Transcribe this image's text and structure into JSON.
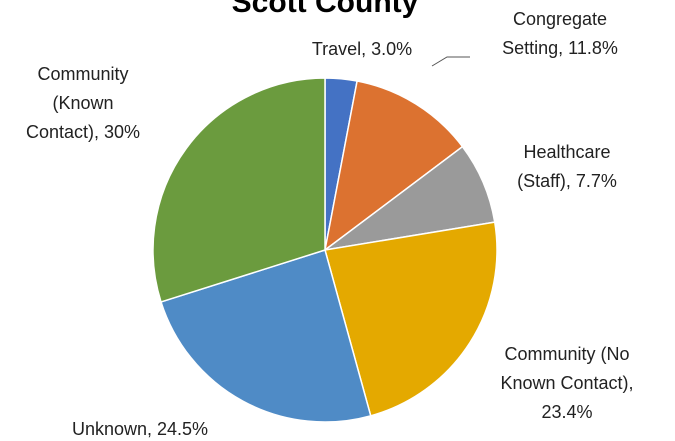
{
  "chart_data": {
    "type": "pie",
    "title": "Scott County",
    "values": [
      3.0,
      11.8,
      7.7,
      23.4,
      24.5,
      30
    ],
    "value_labels": [
      [
        "Travel, 3.0%"
      ],
      [
        "Congregate",
        "Setting, 11.8%"
      ],
      [
        "Healthcare",
        "(Staff), 7.7%"
      ],
      [
        "Community (No",
        "Known Contact),",
        "23.4%"
      ],
      [
        "Unknown, 24.5%"
      ],
      [
        "Community",
        "(Known",
        "Contact), 30%"
      ]
    ],
    "colors": [
      "#4472c4",
      "#dc7230",
      "#9a9a9a",
      "#e4a900",
      "#4f8bc6",
      "#6b9b3e"
    ]
  }
}
